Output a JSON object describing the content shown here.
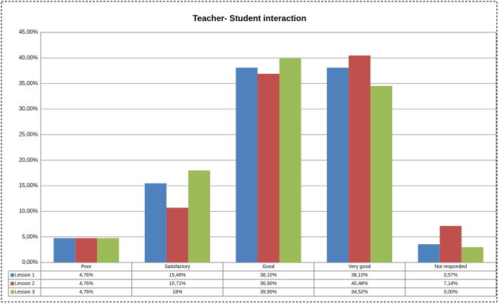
{
  "chart_data": {
    "type": "bar",
    "title": "Teacher- Student interaction",
    "categories": [
      "Poor",
      "Satisfactory",
      "Good",
      "Very good",
      "Not responded"
    ],
    "series": [
      {
        "name": "Lesson 1",
        "color": "#4f81bd",
        "values": [
          4.76,
          15.48,
          38.1,
          38.1,
          3.57
        ],
        "value_labels": [
          "4,76%",
          "15,48%",
          "38,10%",
          "38,10%",
          "3,57%"
        ]
      },
      {
        "name": "Lesson 2",
        "color": "#c0504d",
        "values": [
          4.76,
          10.71,
          36.9,
          40.48,
          7.14
        ],
        "value_labels": [
          "4,76%",
          "10,71%",
          "36,90%",
          "40,48%",
          "7,14%"
        ]
      },
      {
        "name": "Lesson 3",
        "color": "#9bbb59",
        "values": [
          4.76,
          18,
          39.9,
          34.52,
          3.0
        ],
        "value_labels": [
          "4,76%",
          "18%",
          "39,90%",
          "34,52%",
          "3,00%"
        ]
      }
    ],
    "ylim": [
      0,
      45
    ],
    "yticks": [
      {
        "value": 0,
        "label": "0,00%"
      },
      {
        "value": 5,
        "label": "5,00%"
      },
      {
        "value": 10,
        "label": "10,00%"
      },
      {
        "value": 15,
        "label": "15,00%"
      },
      {
        "value": 20,
        "label": "20,00%"
      },
      {
        "value": 25,
        "label": "25,00%"
      },
      {
        "value": 30,
        "label": "30,00%"
      },
      {
        "value": 35,
        "label": "35,00%"
      },
      {
        "value": 40,
        "label": "40,00%"
      },
      {
        "value": 45,
        "label": "45,00%"
      }
    ],
    "grid": true
  }
}
